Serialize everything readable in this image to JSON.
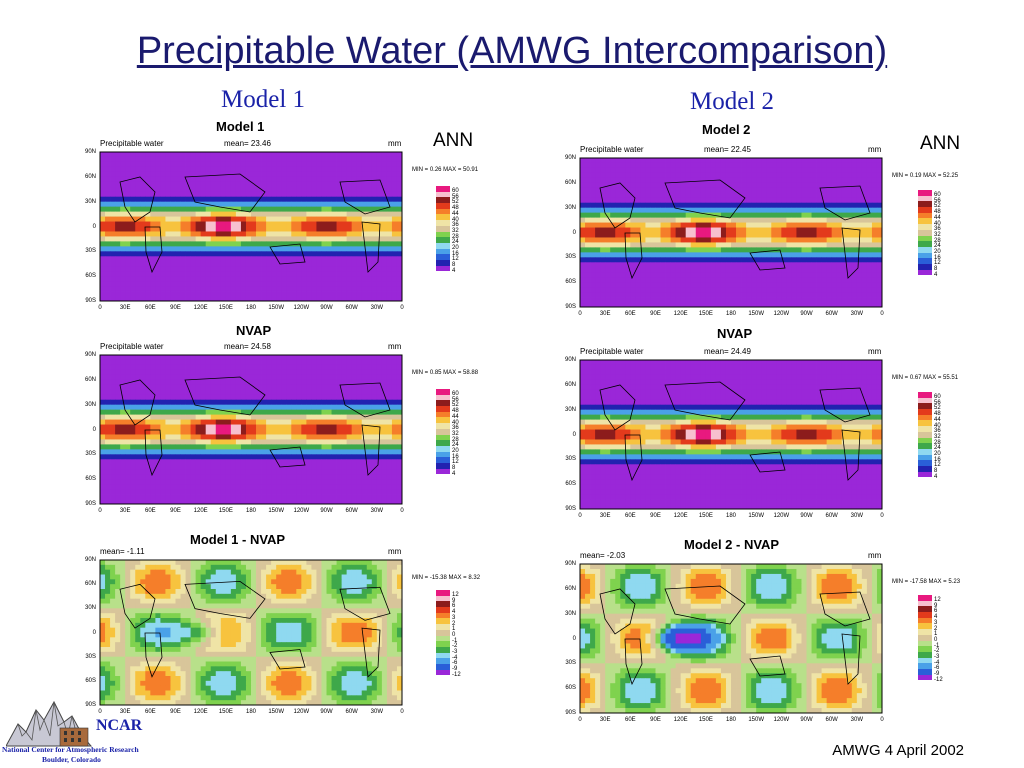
{
  "title": "Precipitable Water (AMWG Intercomparison)",
  "columns": {
    "model1": "Model 1",
    "model2": "Model 2"
  },
  "footer": "AMWG 4 April 2002",
  "logo": {
    "name": "NCAR",
    "line1": "National Center for Atmospheric Research",
    "line2": "Boulder, Colorado"
  },
  "common": {
    "lat_labels": [
      "90N",
      "60N",
      "30N",
      "0",
      "30S",
      "60S",
      "90S"
    ],
    "lon_labels": [
      "0",
      "30E",
      "60E",
      "90E",
      "120E",
      "150E",
      "180",
      "150W",
      "120W",
      "90W",
      "60W",
      "30W",
      "0"
    ],
    "pw_levels": [
      "60",
      "56",
      "52",
      "48",
      "44",
      "40",
      "36",
      "32",
      "28",
      "24",
      "20",
      "16",
      "12",
      "8",
      "4"
    ],
    "pw_colors": [
      "#e8197f",
      "#f7c0cf",
      "#8c1c1c",
      "#e33a1c",
      "#f57e2a",
      "#f7c33e",
      "#efe4a6",
      "#d8c59a",
      "#7fd24e",
      "#3ea84a",
      "#8fd9f0",
      "#4aa1e8",
      "#2a5fd8",
      "#2222b0",
      "#9a27d8"
    ],
    "diff_levels": [
      "12",
      "9",
      "6",
      "4",
      "3",
      "2",
      "1",
      "0",
      "-1",
      "-2",
      "-3",
      "-4",
      "-6",
      "-9",
      "-12"
    ],
    "diff_colors": [
      "#e8197f",
      "#f7c0cf",
      "#8c1c1c",
      "#e33a1c",
      "#f57e2a",
      "#f7c33e",
      "#efe4a6",
      "#d8c59a",
      "#b8e08a",
      "#7fd24e",
      "#3ea84a",
      "#8fd9f0",
      "#4aa1e8",
      "#2a5fd8",
      "#9a27d8"
    ]
  },
  "rows": {
    "model": "ANN",
    "obs": "NVAP",
    "diff1": "Model 1 - NVAP",
    "diff2": "Model 2 - NVAP",
    "m1head": "Model 1",
    "m2head": "Model 2"
  },
  "chart_data": [
    {
      "type": "heatmap",
      "panel": "model1-ann",
      "title": "Precipitable water",
      "mean_label": "mean= 23.46",
      "units": "mm",
      "minmax": "MIN = 0.26 MAX = 50.91"
    },
    {
      "type": "heatmap",
      "panel": "model1-nvap",
      "title": "Precipitable water",
      "mean_label": "mean= 24.58",
      "units": "mm",
      "minmax": "MIN = 0.85 MAX = 58.88"
    },
    {
      "type": "heatmap",
      "panel": "model1-diff",
      "title": "",
      "mean_label": "mean= -1.11",
      "units": "mm",
      "minmax": "MIN = -15.38 MAX = 8.32"
    },
    {
      "type": "heatmap",
      "panel": "model2-ann",
      "title": "Precipitable water",
      "mean_label": "mean= 22.45",
      "units": "mm",
      "minmax": "MIN = 0.19 MAX = 52.25"
    },
    {
      "type": "heatmap",
      "panel": "model2-nvap",
      "title": "Precipitable water",
      "mean_label": "mean= 24.49",
      "units": "mm",
      "minmax": "MIN = 0.67 MAX = 55.51"
    },
    {
      "type": "heatmap",
      "panel": "model2-diff",
      "title": "",
      "mean_label": "mean= -2.03",
      "units": "mm",
      "minmax": "MIN = -17.58 MAX = 5.23"
    }
  ]
}
